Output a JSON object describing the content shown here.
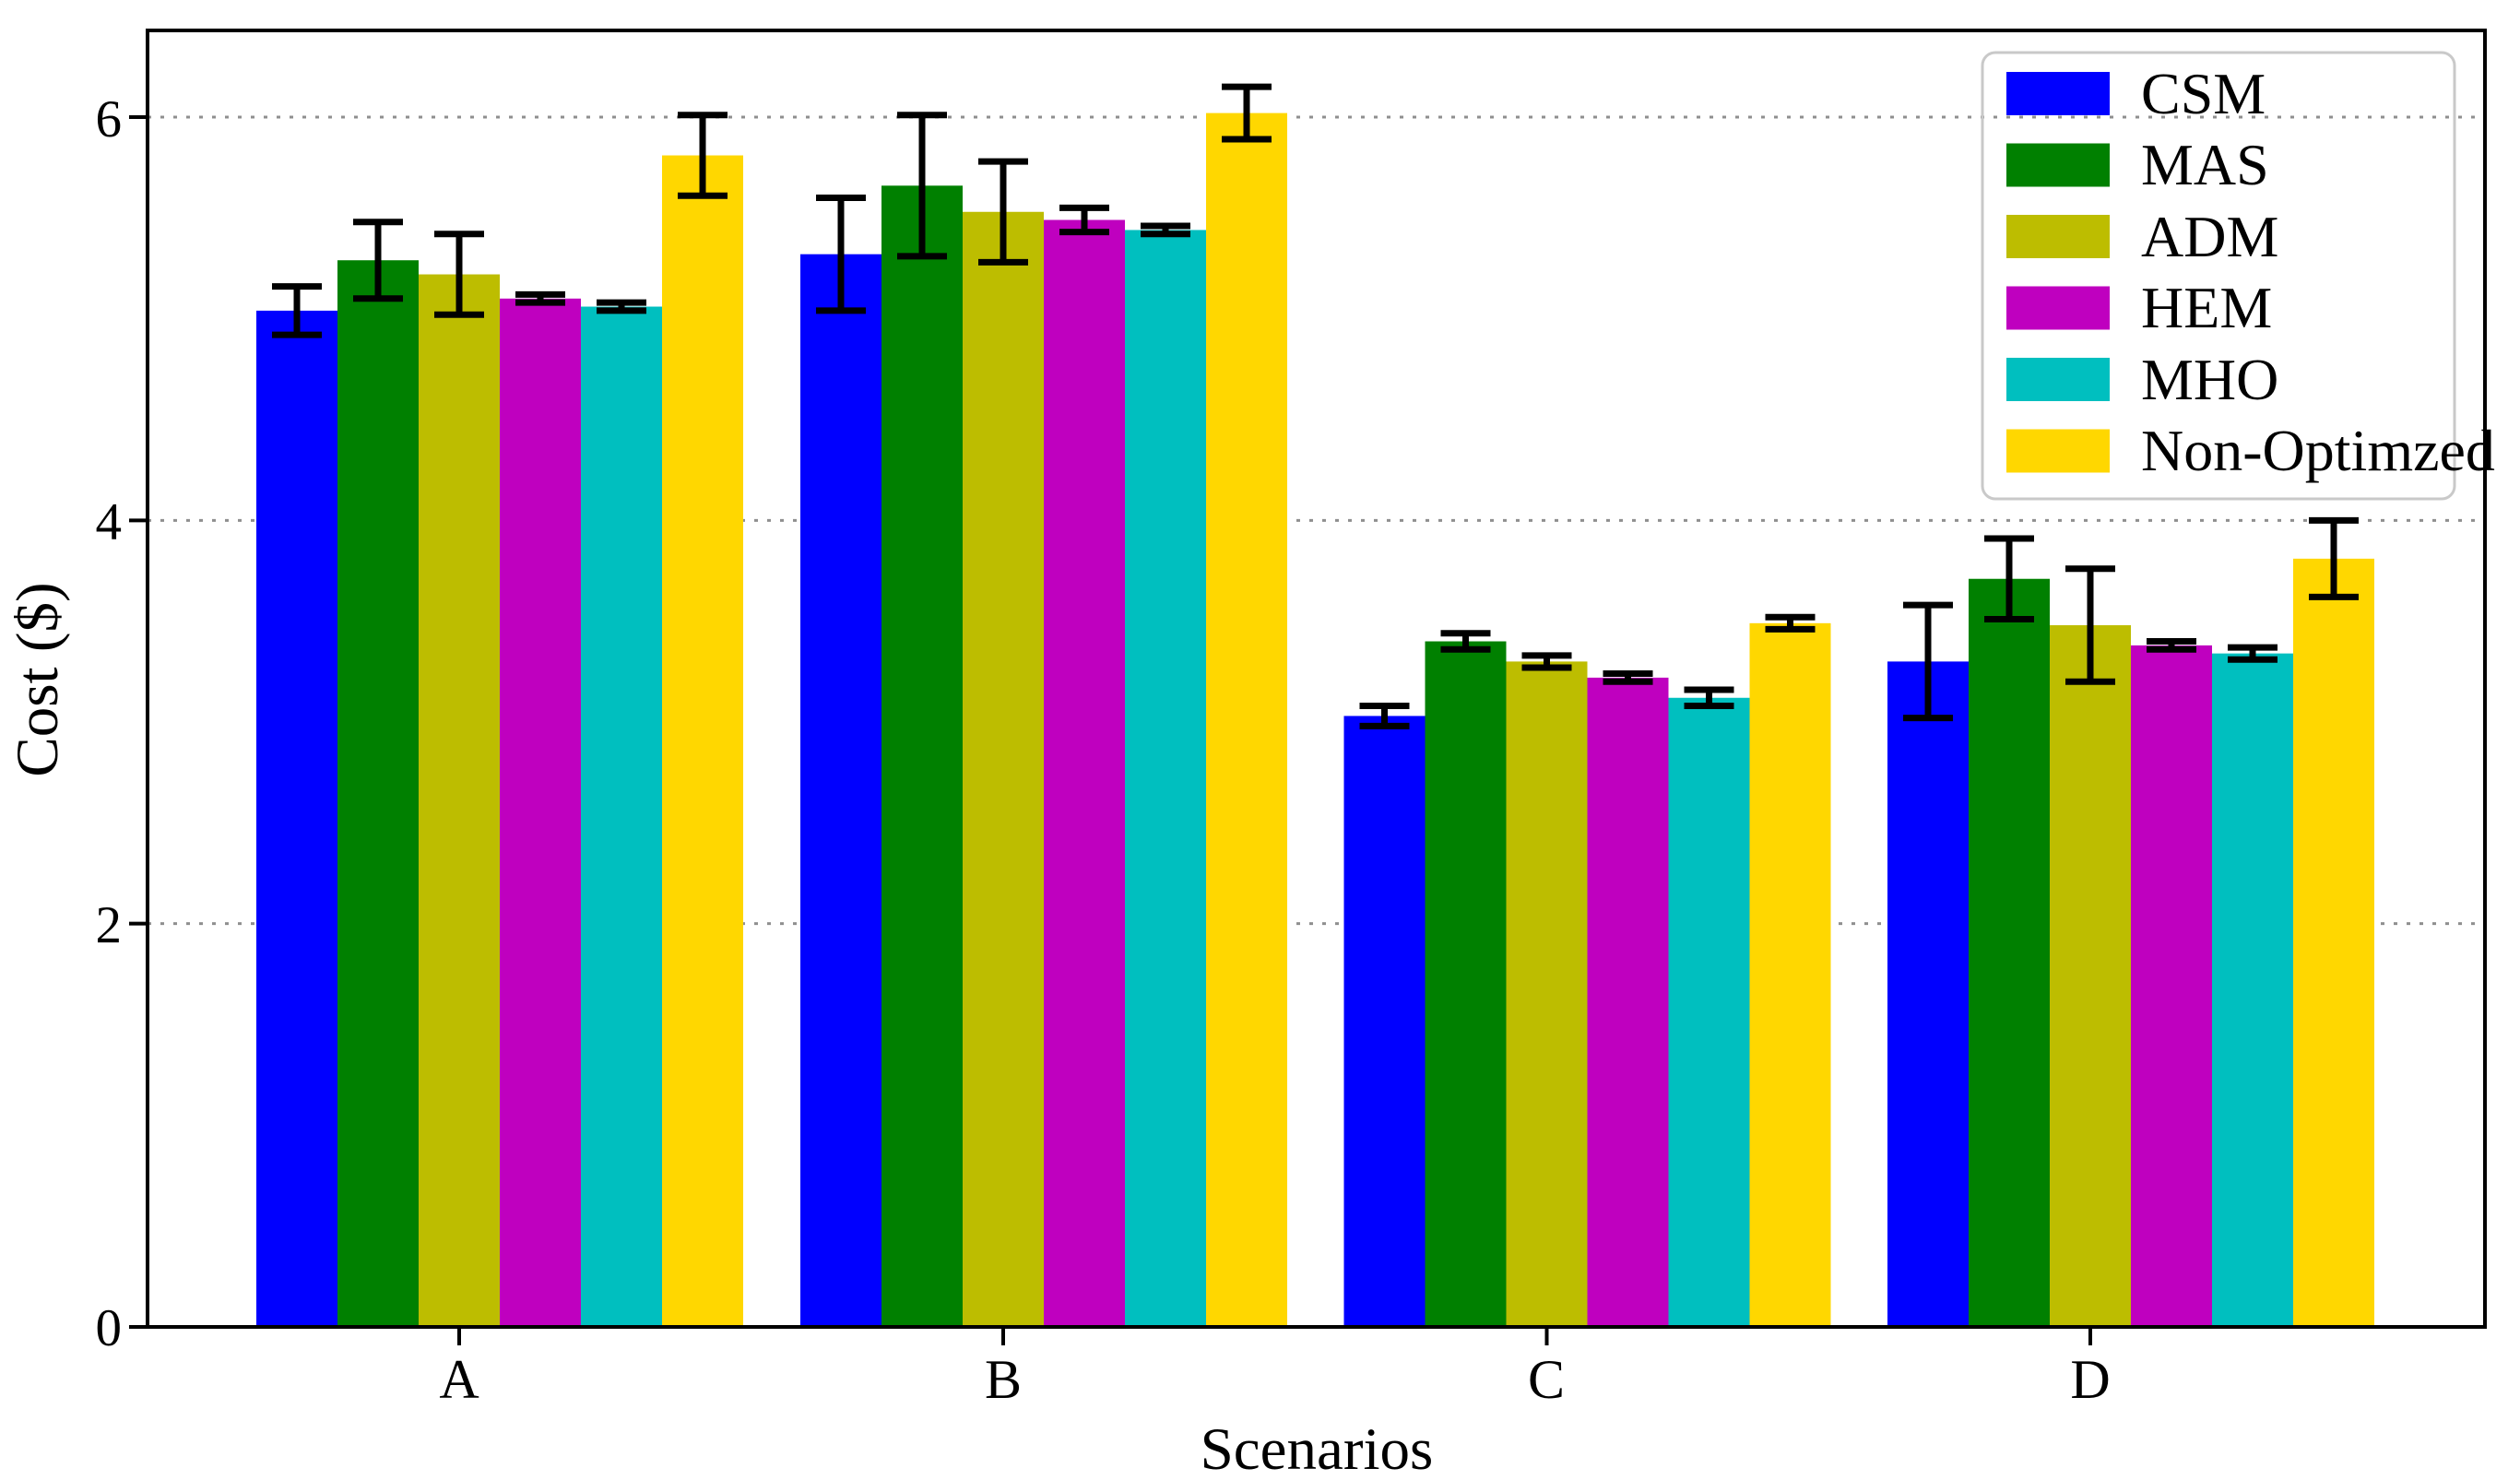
{
  "chart_data": {
    "type": "bar",
    "title": "",
    "xlabel": "Scenarios",
    "ylabel": "Cost ($)",
    "categories": [
      "A",
      "B",
      "C",
      "D"
    ],
    "yticks": [
      "0",
      "2",
      "4",
      "6"
    ],
    "ytick_values": [
      0,
      2,
      4,
      6
    ],
    "ylim": [
      0,
      6.43
    ],
    "grid": {
      "axis": "y",
      "style": "dotted",
      "color": "#8f8f8f"
    },
    "legend_position": "upper right",
    "error_bar_color": "#000000",
    "series": [
      {
        "name": "CSM",
        "color": "#0000ff",
        "values": [
          5.04,
          5.32,
          3.03,
          3.3
        ],
        "errors": [
          0.12,
          0.28,
          0.05,
          0.28
        ]
      },
      {
        "name": "MAS",
        "color": "#008000",
        "values": [
          5.29,
          5.66,
          3.4,
          3.71
        ],
        "errors": [
          0.19,
          0.35,
          0.04,
          0.2
        ]
      },
      {
        "name": "ADM",
        "color": "#bdbd00",
        "values": [
          5.22,
          5.53,
          3.3,
          3.48
        ],
        "errors": [
          0.2,
          0.25,
          0.03,
          0.28
        ]
      },
      {
        "name": "HEM",
        "color": "#bf00bf",
        "values": [
          5.1,
          5.49,
          3.22,
          3.38
        ],
        "errors": [
          0.02,
          0.06,
          0.02,
          0.02
        ]
      },
      {
        "name": "MHO",
        "color": "#00bfbf",
        "values": [
          5.06,
          5.44,
          3.12,
          3.34
        ],
        "errors": [
          0.02,
          0.02,
          0.04,
          0.03
        ]
      },
      {
        "name": "Non-Optimzed",
        "color": "#ffd700",
        "values": [
          5.81,
          6.02,
          3.49,
          3.81
        ],
        "errors": [
          0.2,
          0.13,
          0.03,
          0.19
        ]
      }
    ]
  }
}
